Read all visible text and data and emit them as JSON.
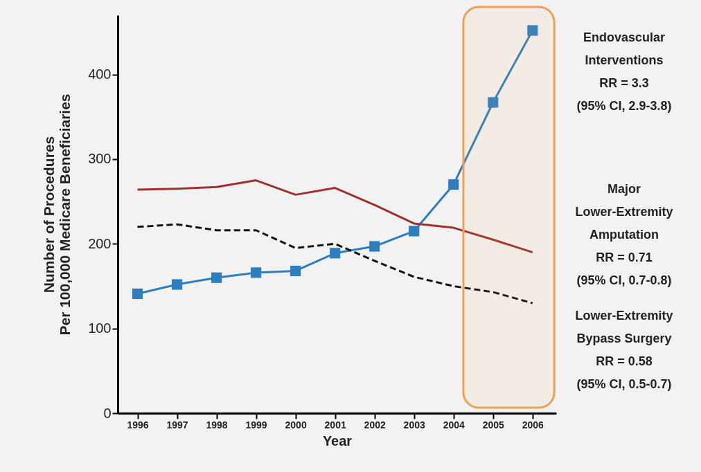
{
  "chart_data": {
    "type": "line",
    "xlabel": "Year",
    "ylabel": "Number of Procedures\nPer 100,000 Medicare Beneficiaries",
    "x": [
      1996,
      1997,
      1998,
      1999,
      2000,
      2001,
      2002,
      2003,
      2004,
      2005,
      2006
    ],
    "xlim": [
      1995.5,
      2006.6
    ],
    "xticks": [
      1996,
      1997,
      1998,
      1999,
      2000,
      2001,
      2002,
      2003,
      2004,
      2005,
      2006
    ],
    "ylim": [
      0,
      470
    ],
    "yticks": [
      0,
      100,
      200,
      300,
      400
    ],
    "grid": false,
    "legend": false,
    "series": [
      {
        "name": "Endovascular Interventions",
        "color": "#2e7ebf",
        "marker": "square",
        "line_style": "solid",
        "values": [
          141,
          152,
          160,
          166,
          168,
          189,
          197,
          215,
          270,
          367,
          452
        ]
      },
      {
        "name": "Major Lower-Extremity Amputation",
        "color": "#a0302e",
        "marker": "none",
        "line_style": "solid",
        "values": [
          264,
          265,
          267,
          275,
          258,
          266,
          246,
          224,
          219,
          205,
          190
        ]
      },
      {
        "name": "Lower-Extremity Bypass Surgery",
        "color": "#111111",
        "marker": "none",
        "line_style": "dashed",
        "values": [
          220,
          223,
          216,
          216,
          195,
          200,
          180,
          161,
          150,
          143,
          130
        ]
      }
    ],
    "annotations": [
      "RR = 3.3",
      "(95% CI, 2.9-3.8)",
      "RR = 0.71",
      "(95% CI, 0.7-0.8)",
      "RR = 0.58",
      "(95% CI, 0.5-0.7)"
    ],
    "bands": [
      {
        "axis": "x",
        "from": 2004.25,
        "to": 2006.55,
        "color": "#f0a050"
      }
    ]
  }
}
